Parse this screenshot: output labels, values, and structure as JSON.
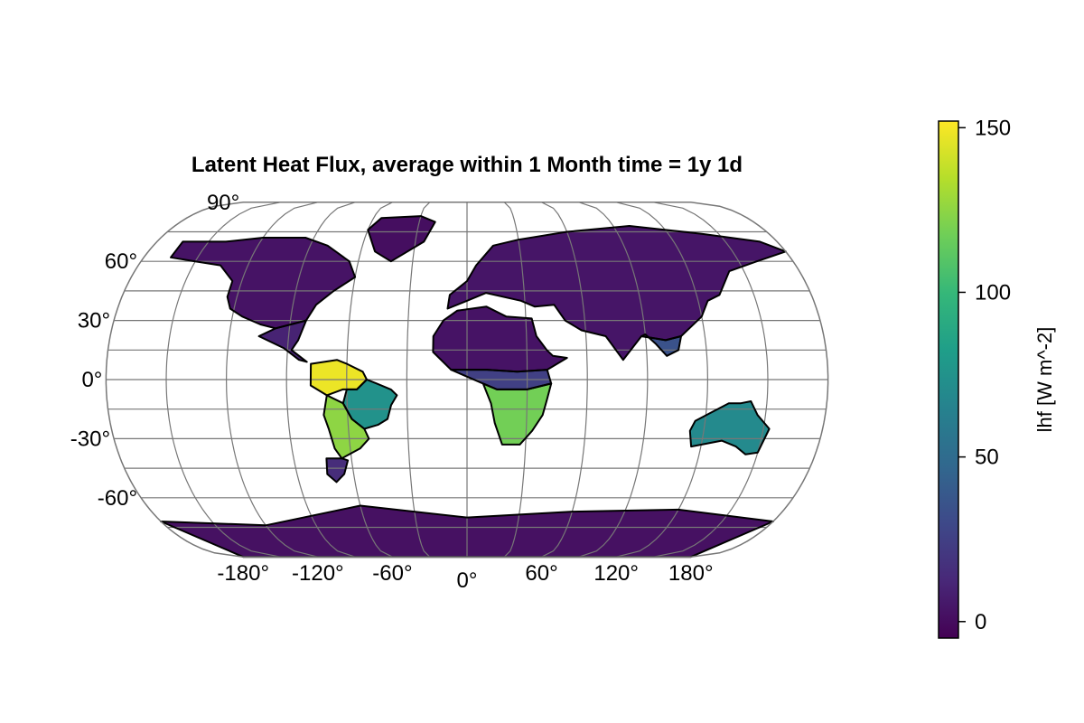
{
  "chart_data": {
    "type": "heatmap",
    "projection": "Eckert-like pseudocylindrical, central meridian 0°",
    "title": "Latent Heat Flux, average within 1 Month time = 1y 1d",
    "variable": "lhf",
    "units": "W m^-2",
    "lat_ticks": [
      {
        "value": 90,
        "label": "90°"
      },
      {
        "value": 60,
        "label": "60°"
      },
      {
        "value": 30,
        "label": "30°"
      },
      {
        "value": 0,
        "label": "0°"
      },
      {
        "value": -30,
        "label": "-30°"
      },
      {
        "value": -60,
        "label": "-60°"
      }
    ],
    "lon_ticks": [
      {
        "value": -180,
        "label": "-180°"
      },
      {
        "value": -120,
        "label": "-120°"
      },
      {
        "value": -60,
        "label": "-60°"
      },
      {
        "value": 0,
        "label": "0°"
      },
      {
        "value": 60,
        "label": "60°"
      },
      {
        "value": 120,
        "label": "120°"
      },
      {
        "value": 180,
        "label": "180°"
      }
    ],
    "colorbar": {
      "label": "lhf [W m^-2]",
      "colormap": "viridis",
      "range": [
        -5,
        152
      ],
      "ticks": [
        {
          "value": 0,
          "label": "0"
        },
        {
          "value": 50,
          "label": "50"
        },
        {
          "value": 100,
          "label": "100"
        },
        {
          "value": 150,
          "label": "150"
        }
      ],
      "stops": [
        "#440154",
        "#482878",
        "#3e4989",
        "#31688e",
        "#26828e",
        "#1f9e89",
        "#35b779",
        "#6ece58",
        "#b5de2b",
        "#fde725"
      ]
    },
    "grid": true,
    "land_regions": [
      {
        "name": "North America",
        "lhf": 3,
        "poly": [
          [
            -165,
            70
          ],
          [
            -140,
            70
          ],
          [
            -120,
            72
          ],
          [
            -95,
            72
          ],
          [
            -80,
            68
          ],
          [
            -65,
            60
          ],
          [
            -60,
            52
          ],
          [
            -70,
            45
          ],
          [
            -78,
            38
          ],
          [
            -82,
            30
          ],
          [
            -97,
            26
          ],
          [
            -105,
            28
          ],
          [
            -115,
            32
          ],
          [
            -122,
            36
          ],
          [
            -125,
            42
          ],
          [
            -125,
            50
          ],
          [
            -135,
            58
          ],
          [
            -150,
            60
          ],
          [
            -165,
            62
          ]
        ]
      },
      {
        "name": "Central America",
        "lhf": 10,
        "poly": [
          [
            -97,
            26
          ],
          [
            -82,
            30
          ],
          [
            -85,
            20
          ],
          [
            -88,
            15
          ],
          [
            -80,
            9
          ],
          [
            -84,
            10
          ],
          [
            -92,
            16
          ],
          [
            -105,
            22
          ]
        ]
      },
      {
        "name": "Greenland",
        "lhf": 1,
        "poly": [
          [
            -55,
            82
          ],
          [
            -30,
            83
          ],
          [
            -20,
            80
          ],
          [
            -25,
            70
          ],
          [
            -42,
            60
          ],
          [
            -52,
            65
          ],
          [
            -60,
            76
          ]
        ]
      },
      {
        "name": "Amazon",
        "lhf": 148,
        "poly": [
          [
            -78,
            8
          ],
          [
            -65,
            10
          ],
          [
            -60,
            8
          ],
          [
            -52,
            4
          ],
          [
            -50,
            0
          ],
          [
            -55,
            -5
          ],
          [
            -62,
            -5
          ],
          [
            -70,
            -8
          ],
          [
            -78,
            -3
          ]
        ]
      },
      {
        "name": "Eastern Brazil",
        "lhf": 75,
        "poly": [
          [
            -55,
            -5
          ],
          [
            -50,
            0
          ],
          [
            -45,
            -2
          ],
          [
            -38,
            -5
          ],
          [
            -35,
            -8
          ],
          [
            -38,
            -13
          ],
          [
            -40,
            -20
          ],
          [
            -45,
            -23
          ],
          [
            -52,
            -25
          ],
          [
            -58,
            -20
          ],
          [
            -62,
            -12
          ],
          [
            -60,
            -5
          ]
        ]
      },
      {
        "name": "Southern South America",
        "lhf": 125,
        "poly": [
          [
            -70,
            -8
          ],
          [
            -62,
            -12
          ],
          [
            -58,
            -20
          ],
          [
            -52,
            -25
          ],
          [
            -50,
            -30
          ],
          [
            -55,
            -35
          ],
          [
            -65,
            -40
          ],
          [
            -68,
            -35
          ],
          [
            -70,
            -25
          ],
          [
            -72,
            -18
          ]
        ]
      },
      {
        "name": "Patagonia",
        "lhf": 15,
        "poly": [
          [
            -65,
            -40
          ],
          [
            -62,
            -41
          ],
          [
            -65,
            -48
          ],
          [
            -70,
            -52
          ],
          [
            -74,
            -48
          ],
          [
            -73,
            -40
          ]
        ]
      },
      {
        "name": "North Africa",
        "lhf": 3,
        "poly": [
          [
            -17,
            22
          ],
          [
            -12,
            30
          ],
          [
            -5,
            35
          ],
          [
            10,
            37
          ],
          [
            20,
            32
          ],
          [
            33,
            31
          ],
          [
            35,
            22
          ],
          [
            40,
            15
          ],
          [
            43,
            12
          ],
          [
            50,
            11
          ],
          [
            40,
            5
          ],
          [
            25,
            4
          ],
          [
            10,
            5
          ],
          [
            -8,
            5
          ],
          [
            -17,
            14
          ]
        ]
      },
      {
        "name": "Central Africa",
        "lhf": 25,
        "poly": [
          [
            -8,
            5
          ],
          [
            10,
            5
          ],
          [
            25,
            4
          ],
          [
            40,
            5
          ],
          [
            42,
            -2
          ],
          [
            30,
            -5
          ],
          [
            15,
            -5
          ],
          [
            8,
            -2
          ]
        ]
      },
      {
        "name": "Southern Africa",
        "lhf": 118,
        "poly": [
          [
            8,
            -2
          ],
          [
            15,
            -5
          ],
          [
            30,
            -5
          ],
          [
            42,
            -2
          ],
          [
            40,
            -10
          ],
          [
            38,
            -18
          ],
          [
            33,
            -26
          ],
          [
            27,
            -33
          ],
          [
            18,
            -33
          ],
          [
            14,
            -22
          ],
          [
            12,
            -12
          ]
        ]
      },
      {
        "name": "Eurasia",
        "lhf": 4,
        "poly": [
          [
            -10,
            36
          ],
          [
            -9,
            43
          ],
          [
            0,
            50
          ],
          [
            5,
            58
          ],
          [
            15,
            68
          ],
          [
            30,
            71
          ],
          [
            60,
            75
          ],
          [
            100,
            78
          ],
          [
            140,
            74
          ],
          [
            170,
            70
          ],
          [
            180,
            65
          ],
          [
            160,
            60
          ],
          [
            142,
            55
          ],
          [
            132,
            43
          ],
          [
            125,
            40
          ],
          [
            120,
            32
          ],
          [
            108,
            22
          ],
          [
            100,
            20
          ],
          [
            88,
            22
          ],
          [
            78,
            10
          ],
          [
            70,
            22
          ],
          [
            58,
            25
          ],
          [
            50,
            30
          ],
          [
            45,
            38
          ],
          [
            35,
            37
          ],
          [
            28,
            40
          ],
          [
            10,
            44
          ],
          [
            0,
            40
          ]
        ]
      },
      {
        "name": "South Asia",
        "lhf": 35,
        "poly": [
          [
            88,
            22
          ],
          [
            100,
            20
          ],
          [
            108,
            22
          ],
          [
            106,
            15
          ],
          [
            100,
            12
          ],
          [
            95,
            18
          ],
          [
            90,
            23
          ]
        ]
      },
      {
        "name": "Australia",
        "lhf": 70,
        "poly": [
          [
            115,
            -21
          ],
          [
            122,
            -17
          ],
          [
            131,
            -12
          ],
          [
            137,
            -12
          ],
          [
            142,
            -11
          ],
          [
            146,
            -18
          ],
          [
            153,
            -25
          ],
          [
            150,
            -37
          ],
          [
            144,
            -38
          ],
          [
            138,
            -34
          ],
          [
            130,
            -31
          ],
          [
            115,
            -34
          ],
          [
            113,
            -26
          ]
        ]
      },
      {
        "name": "Antarctica",
        "lhf": 2,
        "poly": [
          [
            -180,
            -72
          ],
          [
            -120,
            -74
          ],
          [
            -60,
            -64
          ],
          [
            0,
            -70
          ],
          [
            60,
            -67
          ],
          [
            120,
            -66
          ],
          [
            180,
            -72
          ],
          [
            180,
            -90
          ],
          [
            -180,
            -90
          ]
        ]
      }
    ]
  }
}
